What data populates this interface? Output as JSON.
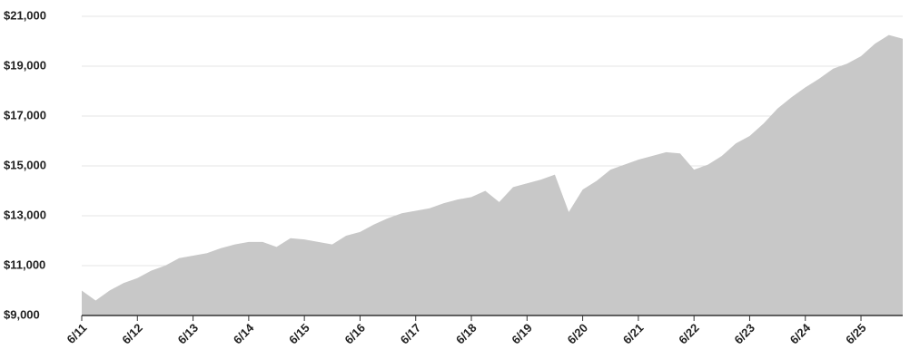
{
  "chart_data": {
    "type": "area",
    "color": "#c8c8c8",
    "grid": true,
    "categories": [
      "6/11",
      null,
      null,
      null,
      "6/12",
      null,
      null,
      null,
      "6/13",
      null,
      null,
      null,
      "6/14",
      null,
      null,
      null,
      "6/15",
      null,
      null,
      null,
      "6/16",
      null,
      null,
      null,
      "6/17",
      null,
      null,
      null,
      "6/18",
      null,
      null,
      null,
      "6/19",
      null,
      null,
      null,
      "6/20",
      null,
      null,
      null,
      "6/21",
      null,
      null,
      null,
      "6/22",
      null,
      null,
      null,
      "6/23",
      null,
      null,
      null,
      "6/24",
      null,
      null,
      null,
      "6/25",
      null,
      null,
      null
    ],
    "values": [
      10000,
      9600,
      10000,
      10300,
      10500,
      10800,
      11000,
      11300,
      11400,
      11500,
      11700,
      11850,
      11950,
      11950,
      11750,
      12100,
      12050,
      11950,
      11850,
      12200,
      12350,
      12650,
      12900,
      13100,
      13200,
      13300,
      13500,
      13650,
      13750,
      14000,
      13550,
      14150,
      14300,
      14450,
      14650,
      13150,
      14050,
      14400,
      14850,
      15050,
      15250,
      15400,
      15550,
      15500,
      14850,
      15050,
      15400,
      15900,
      16200,
      16700,
      17300,
      17750,
      18150,
      18500,
      18900,
      19100,
      19400,
      19900,
      20250,
      20100
    ],
    "ylim": [
      9000,
      21000
    ],
    "yticks": [
      {
        "value": 9000,
        "label": "$9,000"
      },
      {
        "value": 11000,
        "label": "$11,000"
      },
      {
        "value": 13000,
        "label": "$13,000"
      },
      {
        "value": 15000,
        "label": "$15,000"
      },
      {
        "value": 17000,
        "label": "$17,000"
      },
      {
        "value": 19000,
        "label": "$19,000"
      },
      {
        "value": 21000,
        "label": "$21,000"
      }
    ]
  }
}
